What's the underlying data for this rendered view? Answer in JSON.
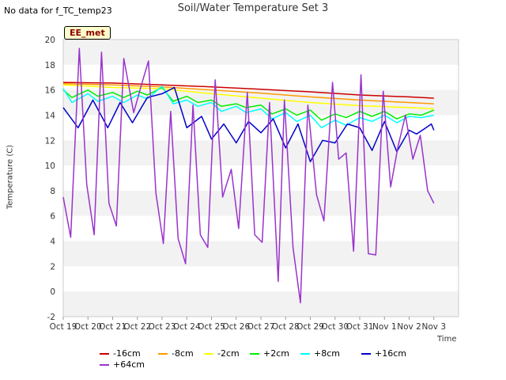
{
  "header": {
    "no_data": "No data for f_TC_temp23",
    "title": "Soil/Water Temperature Set 3",
    "station": "EE_met"
  },
  "chart_data": {
    "type": "line",
    "title": "Soil/Water Temperature Set 3",
    "xlabel": "Time",
    "ylabel": "Temperature (C)",
    "ylim": [
      -2,
      20
    ],
    "xlim": [
      0,
      16
    ],
    "yticks": [
      -2,
      0,
      2,
      4,
      6,
      8,
      10,
      12,
      14,
      16,
      18,
      20
    ],
    "xticks": [
      "Oct 19",
      "Oct 20",
      "Oct 21",
      "Oct 22",
      "Oct 23",
      "Oct 24",
      "Oct 25",
      "Oct 26",
      "Oct 27",
      "Oct 28",
      "Oct 29",
      "Oct 30",
      "Oct 31",
      "Nov 1",
      "Nov 2",
      "Nov 3"
    ],
    "grid": "horizontal bands",
    "legend_position": "bottom",
    "series": [
      {
        "name": "-16cm",
        "color": "#cc0000",
        "x": [
          0,
          2,
          4,
          6,
          8,
          10,
          12,
          14,
          15
        ],
        "y": [
          16.6,
          16.55,
          16.4,
          16.25,
          16.05,
          15.85,
          15.6,
          15.45,
          15.35
        ]
      },
      {
        "name": "-8cm",
        "color": "#ff9900",
        "x": [
          0,
          2,
          4,
          6,
          8,
          10,
          12,
          14,
          15
        ],
        "y": [
          16.5,
          16.4,
          16.25,
          16.0,
          15.75,
          15.45,
          15.2,
          15.0,
          14.9
        ]
      },
      {
        "name": "-2cm",
        "color": "#ffff00",
        "x": [
          0,
          2,
          4,
          6,
          8,
          10,
          12,
          14,
          15
        ],
        "y": [
          16.4,
          16.2,
          16.1,
          15.7,
          15.35,
          15.0,
          14.75,
          14.6,
          14.5
        ]
      },
      {
        "name": "+2cm",
        "color": "#00ee00",
        "x": [
          0,
          0.35,
          1.0,
          1.4,
          2.0,
          2.45,
          3.0,
          3.4,
          4.0,
          4.45,
          5.0,
          5.45,
          6.0,
          6.4,
          7.0,
          7.4,
          8.0,
          8.45,
          9.0,
          9.45,
          10.0,
          10.45,
          11.0,
          11.45,
          12.0,
          12.5,
          13.0,
          13.5,
          14.0,
          14.5,
          15.0
        ],
        "y": [
          16.0,
          15.4,
          16.0,
          15.5,
          15.8,
          15.4,
          15.9,
          15.6,
          16.2,
          15.1,
          15.5,
          15.0,
          15.2,
          14.7,
          14.9,
          14.6,
          14.8,
          14.1,
          14.5,
          14.0,
          14.4,
          13.6,
          14.1,
          13.8,
          14.3,
          13.9,
          14.3,
          13.7,
          14.1,
          14.0,
          14.4
        ]
      },
      {
        "name": "+8cm",
        "color": "#00ffff",
        "x": [
          0,
          0.35,
          1.0,
          1.4,
          2.0,
          2.45,
          3.0,
          3.4,
          4.0,
          4.45,
          5.0,
          5.45,
          6.0,
          6.4,
          7.0,
          7.4,
          8.0,
          8.45,
          9.0,
          9.45,
          10.0,
          10.45,
          11.0,
          11.45,
          12.0,
          12.5,
          13.0,
          13.5,
          14.0,
          14.5,
          15.0
        ],
        "y": [
          16.1,
          15.0,
          15.7,
          15.1,
          15.5,
          15.0,
          15.6,
          15.3,
          16.3,
          14.9,
          15.2,
          14.7,
          15.0,
          14.3,
          14.7,
          14.2,
          14.5,
          13.7,
          14.2,
          13.5,
          14.0,
          13.0,
          13.6,
          13.2,
          13.8,
          13.5,
          14.0,
          13.4,
          13.9,
          13.8,
          14.0
        ]
      },
      {
        "name": "+16cm",
        "color": "#0000cc",
        "x": [
          0,
          0.6,
          1.2,
          1.8,
          2.3,
          2.8,
          3.4,
          4.0,
          4.5,
          5.0,
          5.6,
          6.0,
          6.5,
          7.0,
          7.5,
          8.0,
          8.5,
          9.0,
          9.5,
          10.0,
          10.5,
          11.0,
          11.5,
          12.0,
          12.5,
          13.0,
          13.5,
          14.0,
          14.3,
          14.6,
          14.9,
          15.0
        ],
        "y": [
          14.6,
          13.0,
          15.2,
          13.0,
          15.0,
          13.4,
          15.4,
          15.7,
          16.2,
          13.0,
          13.9,
          12.1,
          13.3,
          11.8,
          13.5,
          12.6,
          13.7,
          11.4,
          13.3,
          10.3,
          12.0,
          11.8,
          13.3,
          13.0,
          11.2,
          13.5,
          11.1,
          12.8,
          12.5,
          12.9,
          13.3,
          12.8
        ]
      },
      {
        "name": "+64cm",
        "color": "#9933cc",
        "x": [
          0,
          0.3,
          0.65,
          0.95,
          1.25,
          1.55,
          1.85,
          2.15,
          2.45,
          2.85,
          3.15,
          3.45,
          3.75,
          4.05,
          4.35,
          4.65,
          4.95,
          5.25,
          5.55,
          5.85,
          6.15,
          6.45,
          6.8,
          7.1,
          7.45,
          7.75,
          8.05,
          8.35,
          8.7,
          8.95,
          9.3,
          9.6,
          9.9,
          10.25,
          10.55,
          10.9,
          11.15,
          11.45,
          11.75,
          12.05,
          12.35,
          12.65,
          12.95,
          13.25,
          13.55,
          13.85,
          14.15,
          14.45,
          14.75,
          15.0
        ],
        "y": [
          7.5,
          4.3,
          19.3,
          8.5,
          4.5,
          19.0,
          7.0,
          5.2,
          18.5,
          14.2,
          16.3,
          18.3,
          7.8,
          3.8,
          14.3,
          4.2,
          2.2,
          14.8,
          4.5,
          3.5,
          16.8,
          7.5,
          9.7,
          5.0,
          15.8,
          4.5,
          3.9,
          15.0,
          0.8,
          15.2,
          3.5,
          -0.9,
          14.8,
          7.7,
          5.6,
          16.6,
          10.5,
          11.0,
          3.2,
          17.2,
          3.0,
          2.9,
          15.9,
          8.3,
          11.5,
          14.0,
          10.5,
          12.4,
          8.0,
          7.0
        ]
      }
    ]
  }
}
